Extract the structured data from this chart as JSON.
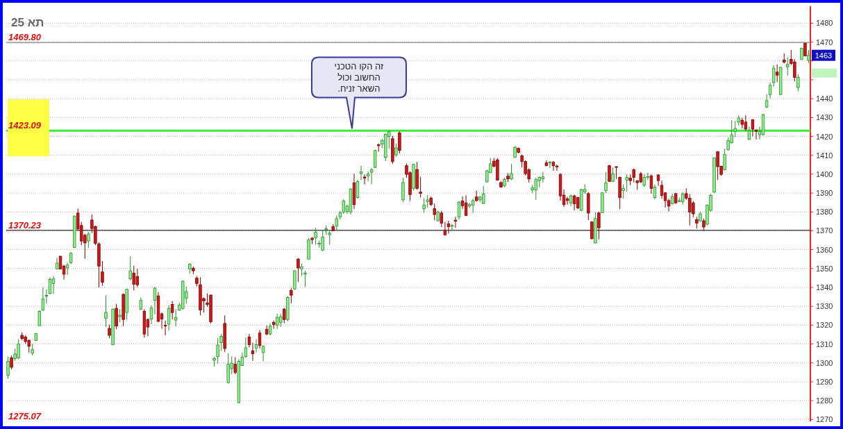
{
  "chart_data": {
    "type": "candlestick",
    "title": "תא 25",
    "categories": [
      null,
      null,
      null,
      null,
      null,
      null,
      null,
      null,
      null,
      null,
      null,
      null,
      null,
      null,
      null,
      null,
      null,
      null,
      null,
      null,
      null,
      null,
      null,
      null,
      null,
      null,
      null,
      null,
      null,
      null,
      null,
      null,
      null,
      null,
      null,
      null,
      null,
      null,
      null,
      null,
      null,
      null,
      null,
      null,
      null,
      null,
      null,
      null,
      null,
      null,
      null,
      null,
      null,
      null,
      null,
      null,
      null,
      null,
      null,
      null,
      null,
      null,
      null,
      null,
      null,
      null,
      null,
      null,
      null,
      null,
      null,
      null,
      null,
      null,
      null,
      null,
      null,
      null,
      null,
      null,
      null,
      null,
      null,
      null,
      null,
      null,
      null,
      null,
      null,
      null,
      null,
      null,
      null,
      null,
      null,
      null,
      null,
      null,
      null,
      null,
      null,
      null,
      null,
      null,
      null,
      null,
      null,
      null,
      null,
      null,
      null,
      null,
      null,
      null,
      null,
      null,
      null,
      null,
      null,
      null,
      null,
      null,
      null,
      null,
      null,
      null,
      null,
      null,
      null,
      null,
      null,
      null,
      null,
      null,
      null,
      null,
      null,
      null,
      null,
      null,
      null,
      null,
      null,
      null,
      null,
      null,
      null,
      null,
      null,
      null,
      null,
      null,
      null,
      null,
      null,
      null,
      null,
      null,
      null,
      null,
      null,
      null,
      null,
      null,
      null,
      null,
      null,
      null,
      null,
      null,
      null,
      null,
      null,
      null,
      null,
      null,
      null,
      null,
      null,
      null,
      null,
      null,
      null,
      null,
      null,
      null,
      null,
      null,
      null,
      null,
      null,
      null,
      null,
      null,
      null,
      null,
      null,
      null,
      null,
      null,
      null,
      null,
      null,
      null,
      null,
      null,
      null,
      null,
      null,
      null,
      null,
      null,
      null,
      null,
      null,
      null,
      null,
      null,
      null,
      null,
      null,
      null,
      null,
      null,
      null,
      null,
      null,
      null,
      null,
      null
    ],
    "ohlc": [
      [
        1293.4,
        1303.3,
        1291.6,
        1300.8
      ],
      [
        1302.7,
        1303.9,
        1296.5,
        1297.7
      ],
      [
        1302.3,
        1307.6,
        1301.1,
        1304.7
      ],
      [
        1302.7,
        1312.5,
        1302.0,
        1310.0
      ],
      [
        1314.6,
        1316.2,
        1311.9,
        1312.9
      ],
      [
        1313.7,
        1314.6,
        1310.1,
        1311.3
      ],
      [
        1311.9,
        1312.5,
        1305.5,
        1308.8
      ],
      [
        1305.1,
        1310.1,
        1303.9,
        1307.0
      ],
      [
        1311.9,
        1315.8,
        1311.6,
        1315.6
      ],
      [
        1319.7,
        1327.9,
        1319.5,
        1327.3
      ],
      [
        1327.9,
        1340.0,
        1327.6,
        1333.8
      ],
      [
        1335.3,
        1339.0,
        1331.4,
        1335.8
      ],
      [
        1336.8,
        1345.4,
        1336.3,
        1344.2
      ],
      [
        1342.1,
        1346.0,
        1336.5,
        1344.5
      ],
      [
        1349.8,
        1355.6,
        1349.5,
        1352.9
      ],
      [
        1356.5,
        1356.8,
        1349.5,
        1349.8
      ],
      [
        1351.3,
        1351.9,
        1344.2,
        1347.0
      ],
      [
        1350.3,
        1353.1,
        1346.6,
        1351.9
      ],
      [
        1353.1,
        1358.7,
        1352.3,
        1358.1
      ],
      [
        1361.2,
        1378.1,
        1360.9,
        1377.8
      ],
      [
        1379.4,
        1381.8,
        1370.4,
        1371.0
      ],
      [
        1372.8,
        1374.7,
        1362.4,
        1364.6
      ],
      [
        1367.6,
        1368.5,
        1355.2,
        1363.6
      ],
      [
        1364.6,
        1369.5,
        1360.9,
        1368.3
      ],
      [
        1375.7,
        1378.6,
        1368.8,
        1371.2
      ],
      [
        1372.2,
        1372.8,
        1362.4,
        1363.4
      ],
      [
        1363.0,
        1363.9,
        1340.0,
        1351.3
      ],
      [
        1348.2,
        1354.0,
        1340.8,
        1342.7
      ],
      [
        1323.6,
        1335.9,
        1319.0,
        1326.7
      ],
      [
        1318.3,
        1320.3,
        1313.1,
        1314.6
      ],
      [
        1309.7,
        1328.8,
        1309.4,
        1328.5
      ],
      [
        1328.9,
        1331.3,
        1317.8,
        1319.5
      ],
      [
        1324.5,
        1328.5,
        1321.5,
        1325.2
      ],
      [
        1336.3,
        1336.8,
        1319.5,
        1323.0
      ],
      [
        1326.7,
        1339.2,
        1323.0,
        1339.0
      ],
      [
        1344.5,
        1356.5,
        1343.7,
        1348.8
      ],
      [
        1347.6,
        1351.5,
        1338.4,
        1341.7
      ],
      [
        1345.8,
        1349.8,
        1340.2,
        1341.4
      ],
      [
        1328.5,
        1334.7,
        1327.9,
        1333.1
      ],
      [
        1327.3,
        1328.5,
        1313.4,
        1315.3
      ],
      [
        1323.0,
        1323.6,
        1314.1,
        1319.0
      ],
      [
        1323.2,
        1330.4,
        1320.5,
        1329.1
      ],
      [
        1333.1,
        1340.2,
        1325.7,
        1339.6
      ],
      [
        1335.5,
        1337.5,
        1321.5,
        1322.0
      ],
      [
        1326.0,
        1326.7,
        1318.1,
        1323.2
      ],
      [
        1319.9,
        1322.4,
        1314.6,
        1319.5
      ],
      [
        1320.5,
        1330.6,
        1317.1,
        1328.9
      ],
      [
        1331.0,
        1332.8,
        1323.0,
        1326.7
      ],
      [
        1322.7,
        1328.5,
        1319.3,
        1324.0
      ],
      [
        1327.9,
        1331.8,
        1327.6,
        1330.6
      ],
      [
        1328.9,
        1343.7,
        1328.1,
        1343.3
      ],
      [
        1334.3,
        1340.5,
        1331.3,
        1337.8
      ],
      [
        1349.8,
        1352.8,
        1347.4,
        1352.3
      ],
      [
        1350.1,
        1351.1,
        1347.0,
        1348.8
      ],
      [
        1344.9,
        1346.1,
        1340.5,
        1342.1
      ],
      [
        1341.4,
        1345.4,
        1325.2,
        1328.1
      ],
      [
        1334.1,
        1334.7,
        1326.7,
        1332.8
      ],
      [
        1331.8,
        1336.8,
        1329.8,
        1331.0
      ],
      [
        1335.9,
        1336.3,
        1320.8,
        1321.8
      ],
      [
        1301.4,
        1303.3,
        1298.1,
        1302.3
      ],
      [
        1303.3,
        1313.1,
        1299.6,
        1309.4
      ],
      [
        1310.7,
        1315.3,
        1306.4,
        1314.1
      ],
      [
        1320.9,
        1325.1,
        1305.7,
        1307.6
      ],
      [
        1289.5,
        1305.1,
        1289.1,
        1299.3
      ],
      [
        1296.9,
        1303.3,
        1294.0,
        1299.8
      ],
      [
        1299.3,
        1303.0,
        1294.0,
        1294.9
      ],
      [
        1278.9,
        1302.0,
        1278.6,
        1300.8
      ],
      [
        1298.6,
        1305.5,
        1298.3,
        1303.0
      ],
      [
        1303.3,
        1313.4,
        1302.7,
        1308.0
      ],
      [
        1313.7,
        1315.3,
        1308.2,
        1309.7
      ],
      [
        1306.4,
        1310.7,
        1301.1,
        1304.8
      ],
      [
        1307.9,
        1312.5,
        1305.5,
        1309.7
      ],
      [
        1315.8,
        1317.4,
        1307.6,
        1309.2
      ],
      [
        1305.5,
        1309.2,
        1300.8,
        1308.8
      ],
      [
        1317.8,
        1319.9,
        1314.6,
        1315.3
      ],
      [
        1315.3,
        1320.8,
        1314.6,
        1319.5
      ],
      [
        1321.5,
        1322.4,
        1318.1,
        1320.3
      ],
      [
        1320.0,
        1326.0,
        1318.0,
        1324.0
      ],
      [
        1321.5,
        1326.0,
        1319.0,
        1324.5
      ],
      [
        1328.5,
        1329.1,
        1321.0,
        1323.0
      ],
      [
        1323.0,
        1335.3,
        1322.0,
        1334.7
      ],
      [
        1338.4,
        1339.6,
        1331.6,
        1335.9
      ],
      [
        1339.2,
        1349.1,
        1338.7,
        1348.8
      ],
      [
        1355.0,
        1355.6,
        1342.9,
        1350.3
      ],
      [
        1349.8,
        1352.5,
        1346.1,
        1350.9
      ],
      [
        1347.0,
        1348.8,
        1340.2,
        1347.6
      ],
      [
        1355.0,
        1366.1,
        1354.7,
        1365.1
      ],
      [
        1366.1,
        1366.7,
        1363.0,
        1365.3
      ],
      [
        1366.3,
        1371.6,
        1362.6,
        1369.2
      ],
      [
        1363.0,
        1364.8,
        1361.1,
        1363.4
      ],
      [
        1359.7,
        1370.4,
        1359.3,
        1366.7
      ],
      [
        1370.8,
        1372.8,
        1367.9,
        1371.2
      ],
      [
        1367.9,
        1370.0,
        1362.6,
        1368.8
      ],
      [
        1372.2,
        1373.5,
        1369.8,
        1370.0
      ],
      [
        1372.5,
        1378.1,
        1370.4,
        1376.5
      ],
      [
        1377.4,
        1380.6,
        1375.9,
        1379.6
      ],
      [
        1379.9,
        1386.8,
        1379.0,
        1385.8
      ],
      [
        1380.2,
        1383.9,
        1379.0,
        1383.1
      ],
      [
        1379.9,
        1392.5,
        1378.6,
        1392.2
      ],
      [
        1395.4,
        1400.3,
        1381.5,
        1383.9
      ],
      [
        1387.6,
        1396.9,
        1387.0,
        1396.1
      ],
      [
        1400.3,
        1404.5,
        1396.9,
        1401.2
      ],
      [
        1398.5,
        1399.9,
        1394.6,
        1397.9
      ],
      [
        1399.0,
        1401.5,
        1396.2,
        1400.2
      ],
      [
        1401.0,
        1403.3,
        1394.6,
        1402.3
      ],
      [
        1403.6,
        1412.9,
        1403.3,
        1412.6
      ],
      [
        1415.6,
        1416.3,
        1411.9,
        1415.1
      ],
      [
        1415.9,
        1418.8,
        1413.9,
        1417.8
      ],
      [
        1408.9,
        1421.5,
        1407.0,
        1421.1
      ],
      [
        1420.0,
        1423.3,
        1413.5,
        1422.5
      ],
      [
        1418.8,
        1420.3,
        1405.5,
        1406.7
      ],
      [
        1410.2,
        1416.3,
        1409.2,
        1413.9
      ],
      [
        1421.9,
        1422.7,
        1411.0,
        1412.6
      ],
      [
        1386.4,
        1398.1,
        1385.2,
        1395.6
      ],
      [
        1404.5,
        1405.7,
        1398.1,
        1399.9
      ],
      [
        1400.8,
        1401.5,
        1386.0,
        1389.2
      ],
      [
        1392.5,
        1405.5,
        1391.3,
        1405.2
      ],
      [
        1402.4,
        1406.5,
        1391.7,
        1392.5
      ],
      [
        1390.5,
        1398.7,
        1387.6,
        1389.8
      ],
      [
        1381.8,
        1387.3,
        1379.6,
        1383.6
      ],
      [
        1385.5,
        1388.9,
        1382.3,
        1386.4
      ],
      [
        1387.3,
        1388.2,
        1383.1,
        1384.0
      ],
      [
        1381.7,
        1384.5,
        1375.7,
        1378.6
      ],
      [
        1375.3,
        1380.8,
        1374.9,
        1379.9
      ],
      [
        1379.4,
        1380.6,
        1372.0,
        1374.1
      ],
      [
        1370.4,
        1374.7,
        1367.3,
        1367.9
      ],
      [
        1373.7,
        1375.3,
        1368.5,
        1372.2
      ],
      [
        1372.5,
        1373.5,
        1370.0,
        1372.8
      ],
      [
        1375.6,
        1377.4,
        1371.6,
        1375.1
      ],
      [
        1377.4,
        1385.8,
        1375.9,
        1385.2
      ],
      [
        1385.8,
        1388.2,
        1381.5,
        1383.3
      ],
      [
        1384.8,
        1388.8,
        1378.1,
        1378.1
      ],
      [
        1383.1,
        1384.8,
        1382.1,
        1383.9
      ],
      [
        1383.6,
        1387.0,
        1379.4,
        1386.0
      ],
      [
        1387.9,
        1391.3,
        1385.5,
        1386.0
      ],
      [
        1386.4,
        1388.5,
        1385.2,
        1387.9
      ],
      [
        1384.5,
        1393.8,
        1384.3,
        1389.5
      ],
      [
        1395.9,
        1402.4,
        1395.6,
        1401.8
      ],
      [
        1400.8,
        1408.6,
        1400.6,
        1405.5
      ],
      [
        1406.9,
        1408.6,
        1403.6,
        1404.2
      ],
      [
        1407.6,
        1408.6,
        1396.6,
        1396.9
      ],
      [
        1395.6,
        1396.2,
        1392.9,
        1393.2
      ],
      [
        1393.8,
        1398.1,
        1393.2,
        1397.2
      ],
      [
        1399.0,
        1400.6,
        1395.9,
        1397.5
      ],
      [
        1397.5,
        1405.5,
        1396.9,
        1400.3
      ],
      [
        1408.9,
        1414.7,
        1408.6,
        1414.3
      ],
      [
        1413.7,
        1414.1,
        1411.0,
        1411.6
      ],
      [
        1409.8,
        1410.4,
        1403.6,
        1406.7
      ],
      [
        1406.7,
        1407.3,
        1399.3,
        1400.3
      ],
      [
        1402.4,
        1403.0,
        1395.6,
        1397.5
      ],
      [
        1391.7,
        1394.4,
        1390.1,
        1392.8
      ],
      [
        1391.7,
        1398.1,
        1386.4,
        1397.1
      ],
      [
        1396.6,
        1398.7,
        1392.9,
        1398.3
      ],
      [
        1397.5,
        1401.2,
        1395.6,
        1398.6
      ],
      [
        1406.0,
        1407.3,
        1404.2,
        1404.5
      ],
      [
        1406.1,
        1407.0,
        1403.3,
        1406.3
      ],
      [
        1406.3,
        1407.0,
        1401.8,
        1404.5
      ],
      [
        1404.3,
        1405.1,
        1401.8,
        1403.9
      ],
      [
        1399.9,
        1400.6,
        1386.0,
        1388.5
      ],
      [
        1388.9,
        1391.9,
        1382.7,
        1383.9
      ],
      [
        1387.0,
        1388.0,
        1383.9,
        1386.0
      ],
      [
        1384.8,
        1389.2,
        1383.1,
        1388.5
      ],
      [
        1388.5,
        1389.2,
        1380.8,
        1384.3
      ],
      [
        1387.6,
        1388.0,
        1381.5,
        1382.1
      ],
      [
        1380.8,
        1392.2,
        1380.6,
        1391.9
      ],
      [
        1390.7,
        1394.6,
        1389.5,
        1391.9
      ],
      [
        1389.7,
        1390.5,
        1375.7,
        1379.4
      ],
      [
        1374.7,
        1374.9,
        1365.5,
        1365.8
      ],
      [
        1363.6,
        1379.9,
        1363.4,
        1376.5
      ],
      [
        1379.4,
        1380.2,
        1365.5,
        1371.6
      ],
      [
        1379.6,
        1390.5,
        1379.4,
        1390.1
      ],
      [
        1391.3,
        1401.2,
        1390.1,
        1395.4
      ],
      [
        1404.5,
        1404.9,
        1395.9,
        1396.2
      ],
      [
        1396.2,
        1403.6,
        1395.9,
        1400.2
      ],
      [
        1404.0,
        1404.2,
        1397.5,
        1403.6
      ],
      [
        1398.3,
        1398.7,
        1381.5,
        1387.6
      ],
      [
        1391.3,
        1394.6,
        1387.0,
        1392.5
      ],
      [
        1396.9,
        1399.9,
        1390.7,
        1398.3
      ],
      [
        1397.9,
        1399.9,
        1394.2,
        1396.6
      ],
      [
        1402.4,
        1403.0,
        1395.6,
        1398.3
      ],
      [
        1396.5,
        1396.9,
        1391.7,
        1395.5
      ],
      [
        1400.3,
        1401.2,
        1395.4,
        1395.9
      ],
      [
        1394.1,
        1399.9,
        1393.2,
        1398.3
      ],
      [
        1398.3,
        1400.8,
        1396.9,
        1398.7
      ],
      [
        1399.1,
        1399.9,
        1389.7,
        1392.5
      ],
      [
        1387.6,
        1394.6,
        1386.7,
        1393.2
      ],
      [
        1399.6,
        1399.9,
        1393.8,
        1396.6
      ],
      [
        1394.1,
        1396.6,
        1387.0,
        1388.8
      ],
      [
        1390.1,
        1390.5,
        1382.3,
        1386.0
      ],
      [
        1386.0,
        1387.0,
        1380.2,
        1383.1
      ],
      [
        1384.3,
        1389.7,
        1383.9,
        1388.0
      ],
      [
        1389.7,
        1390.1,
        1384.3,
        1384.8
      ],
      [
        1385.5,
        1387.6,
        1385.2,
        1386.0
      ],
      [
        1385.5,
        1390.5,
        1383.9,
        1389.5
      ],
      [
        1389.7,
        1392.5,
        1386.4,
        1387.3
      ],
      [
        1387.3,
        1389.5,
        1372.8,
        1379.9
      ],
      [
        1384.8,
        1385.8,
        1377.2,
        1379.0
      ],
      [
        1375.9,
        1377.4,
        1371.2,
        1374.1
      ],
      [
        1375.3,
        1380.2,
        1374.7,
        1379.0
      ],
      [
        1375.3,
        1376.5,
        1370.0,
        1372.0
      ],
      [
        1373.5,
        1383.9,
        1372.8,
        1383.6
      ],
      [
        1380.8,
        1389.5,
        1380.2,
        1388.8
      ],
      [
        1390.5,
        1408.9,
        1390.1,
        1408.6
      ],
      [
        1411.9,
        1412.2,
        1396.9,
        1404.0
      ],
      [
        1404.2,
        1404.5,
        1399.1,
        1399.9
      ],
      [
        1402.4,
        1413.5,
        1402.0,
        1410.4
      ],
      [
        1412.9,
        1419.3,
        1412.6,
        1417.8
      ],
      [
        1416.6,
        1428.6,
        1416.3,
        1420.9
      ],
      [
        1422.7,
        1428.2,
        1419.6,
        1424.2
      ],
      [
        1427.6,
        1431.3,
        1425.8,
        1429.9
      ],
      [
        1428.6,
        1429.9,
        1424.2,
        1426.4
      ],
      [
        1427.6,
        1431.3,
        1423.0,
        1423.9
      ],
      [
        1418.4,
        1425.2,
        1418.4,
        1422.9
      ],
      [
        1428.9,
        1429.1,
        1420.0,
        1423.9
      ],
      [
        1423.3,
        1423.9,
        1418.4,
        1422.7
      ],
      [
        1420.9,
        1425.2,
        1418.4,
        1422.7
      ],
      [
        1420.9,
        1432.0,
        1420.5,
        1431.6
      ],
      [
        1435.6,
        1442.4,
        1435.0,
        1439.0
      ],
      [
        1442.2,
        1448.6,
        1440.2,
        1447.1
      ],
      [
        1448.6,
        1457.8,
        1446.4,
        1456.2
      ],
      [
        1454.1,
        1458.2,
        1448.8,
        1452.5
      ],
      [
        1442.2,
        1456.9,
        1441.9,
        1456.6
      ],
      [
        1460.5,
        1464.0,
        1458.7,
        1459.4
      ],
      [
        1456.9,
        1462.1,
        1452.3,
        1458.2
      ],
      [
        1460.9,
        1465.8,
        1457.8,
        1458.7
      ],
      [
        1459.4,
        1460.9,
        1449.2,
        1451.3
      ],
      [
        1445.9,
        1452.9,
        1443.9,
        1451.3
      ],
      [
        1460.9,
        1467.0,
        1460.6,
        1466.8
      ],
      [
        1469.3,
        1469.8,
        1462.4,
        1462.7
      ],
      [
        1460.3,
        1465.8,
        1459.0,
        1463.0
      ]
    ],
    "ylim": [
      1269,
      1489
    ],
    "yticks": [
      1270,
      1280,
      1290,
      1300,
      1310,
      1320,
      1330,
      1340,
      1350,
      1360,
      1370,
      1380,
      1390,
      1400,
      1410,
      1420,
      1430,
      1440,
      {
        "value": 1450,
        "label": null
      },
      {
        "value": 1460,
        "label": null
      },
      1470,
      1480
    ],
    "grid": "y",
    "ref_lines": [
      {
        "axis": "y",
        "value": 1469.8,
        "label": "1469.80",
        "color": "#707070"
      },
      {
        "axis": "y",
        "value": 1423.09,
        "label": "1423.09",
        "color": "#33ee33"
      },
      {
        "axis": "y",
        "value": 1370.23,
        "label": "1370.23",
        "color": "#000000"
      }
    ],
    "annotations": [
      "1275.07",
      {
        "text": "1463",
        "y": 1463
      },
      "זה  הקו הטכני\nהחשוב  וכול\nהשאר זניח."
    ]
  }
}
